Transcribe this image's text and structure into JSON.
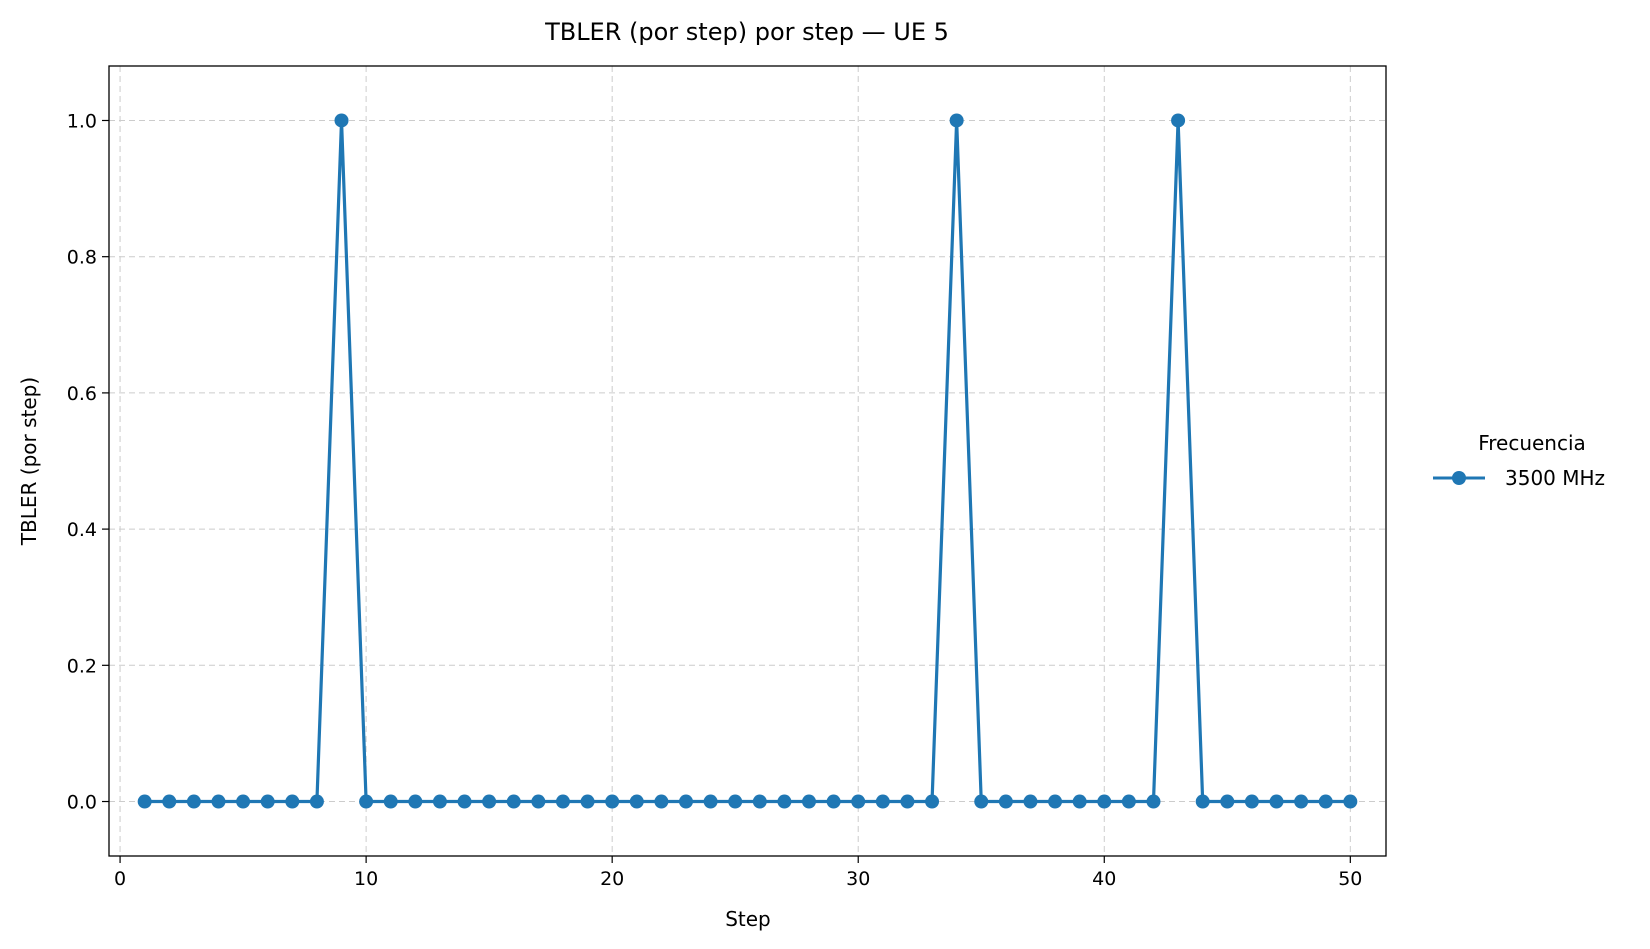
{
  "chart_data": {
    "type": "line",
    "title": "TBLER (por step) por step — UE 5",
    "xlabel": "Step",
    "ylabel": "TBLER (por step)",
    "xlim": [
      -0.45,
      51.45
    ],
    "ylim": [
      -0.08,
      1.08
    ],
    "x_ticks": [
      0,
      10,
      20,
      30,
      40,
      50
    ],
    "y_ticks": [
      0.0,
      0.2,
      0.4,
      0.6,
      0.8,
      1.0
    ],
    "x_tick_labels": [
      "0",
      "10",
      "20",
      "30",
      "40",
      "50"
    ],
    "y_tick_labels": [
      "0.0",
      "0.2",
      "0.4",
      "0.6",
      "0.8",
      "1.0"
    ],
    "grid": true,
    "legend": {
      "title": "Frecuencia",
      "placement": "outside-right"
    },
    "x": [
      1,
      2,
      3,
      4,
      5,
      6,
      7,
      8,
      9,
      10,
      11,
      12,
      13,
      14,
      15,
      16,
      17,
      18,
      19,
      20,
      21,
      22,
      23,
      24,
      25,
      26,
      27,
      28,
      29,
      30,
      31,
      32,
      33,
      34,
      35,
      36,
      37,
      38,
      39,
      40,
      41,
      42,
      43,
      44,
      45,
      46,
      47,
      48,
      49,
      50
    ],
    "series": [
      {
        "name": "3500 MHz",
        "color": "#1f77b4",
        "values": [
          0,
          0,
          0,
          0,
          0,
          0,
          0,
          0,
          1,
          0,
          0,
          0,
          0,
          0,
          0,
          0,
          0,
          0,
          0,
          0,
          0,
          0,
          0,
          0,
          0,
          0,
          0,
          0,
          0,
          0,
          0,
          0,
          0,
          1,
          0,
          0,
          0,
          0,
          0,
          0,
          0,
          0,
          1,
          0,
          0,
          0,
          0,
          0,
          0,
          0
        ]
      }
    ]
  }
}
